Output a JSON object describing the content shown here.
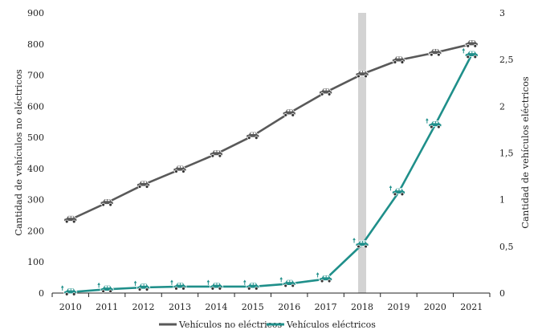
{
  "chart_data": {
    "type": "line",
    "categories": [
      "2010",
      "2011",
      "2012",
      "2013",
      "2014",
      "2015",
      "2016",
      "2017",
      "2018",
      "2019",
      "2020",
      "2021"
    ],
    "highlight_category": "2018",
    "series": [
      {
        "name": "Vehículos no eléctricos",
        "axis": "left",
        "color": "#595959",
        "marker": "car-icon",
        "values": [
          236,
          290,
          348,
          397,
          447,
          505,
          578,
          645,
          703,
          748,
          772,
          800
        ]
      },
      {
        "name": "Vehículos eléctricos",
        "axis": "right",
        "color": "#1f8f8a",
        "marker": "electric-car-icon",
        "values": [
          0.01,
          0.04,
          0.06,
          0.07,
          0.07,
          0.07,
          0.1,
          0.15,
          0.52,
          1.08,
          1.8,
          2.55
        ]
      }
    ],
    "y_left": {
      "label": "Cantidad de vehículos no eléctricos",
      "ylim": [
        0,
        900
      ],
      "ticks": [
        "0",
        "100",
        "200",
        "300",
        "400",
        "500",
        "600",
        "700",
        "800",
        "900"
      ]
    },
    "y_right": {
      "label": "Cantidad de vehículos eléctricos",
      "ylim": [
        0,
        3
      ],
      "ticks": [
        "0",
        "0,5",
        "1",
        "1,5",
        "2",
        "2,5",
        "3"
      ]
    },
    "xlabel": "",
    "grid": false,
    "legend_position": "bottom-center"
  }
}
